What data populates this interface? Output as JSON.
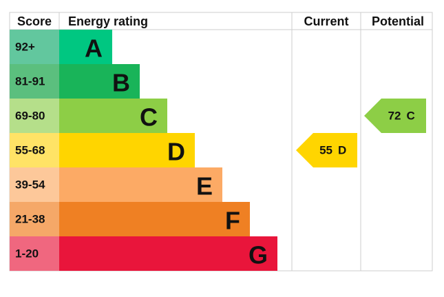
{
  "header": {
    "score": "Score",
    "rating": "Energy rating",
    "current": "Current",
    "potential": "Potential"
  },
  "bands": [
    {
      "score": "92+",
      "letter": "A",
      "color": "#00c781",
      "score_color": "#62c79e"
    },
    {
      "score": "81-91",
      "letter": "B",
      "color": "#19b459",
      "score_color": "#5bbf7e"
    },
    {
      "score": "69-80",
      "letter": "C",
      "color": "#8dce46",
      "score_color": "#b5df8a"
    },
    {
      "score": "55-68",
      "letter": "D",
      "color": "#ffd500",
      "score_color": "#ffe366"
    },
    {
      "score": "39-54",
      "letter": "E",
      "color": "#fcaa65",
      "score_color": "#fdc89a"
    },
    {
      "score": "21-38",
      "letter": "F",
      "color": "#ef8023",
      "score_color": "#f5a868"
    },
    {
      "score": "1-20",
      "letter": "G",
      "color": "#e9153b",
      "score_color": "#f0677f"
    }
  ],
  "current": {
    "score": 55,
    "letter": "D"
  },
  "potential": {
    "score": 72,
    "letter": "C"
  }
}
